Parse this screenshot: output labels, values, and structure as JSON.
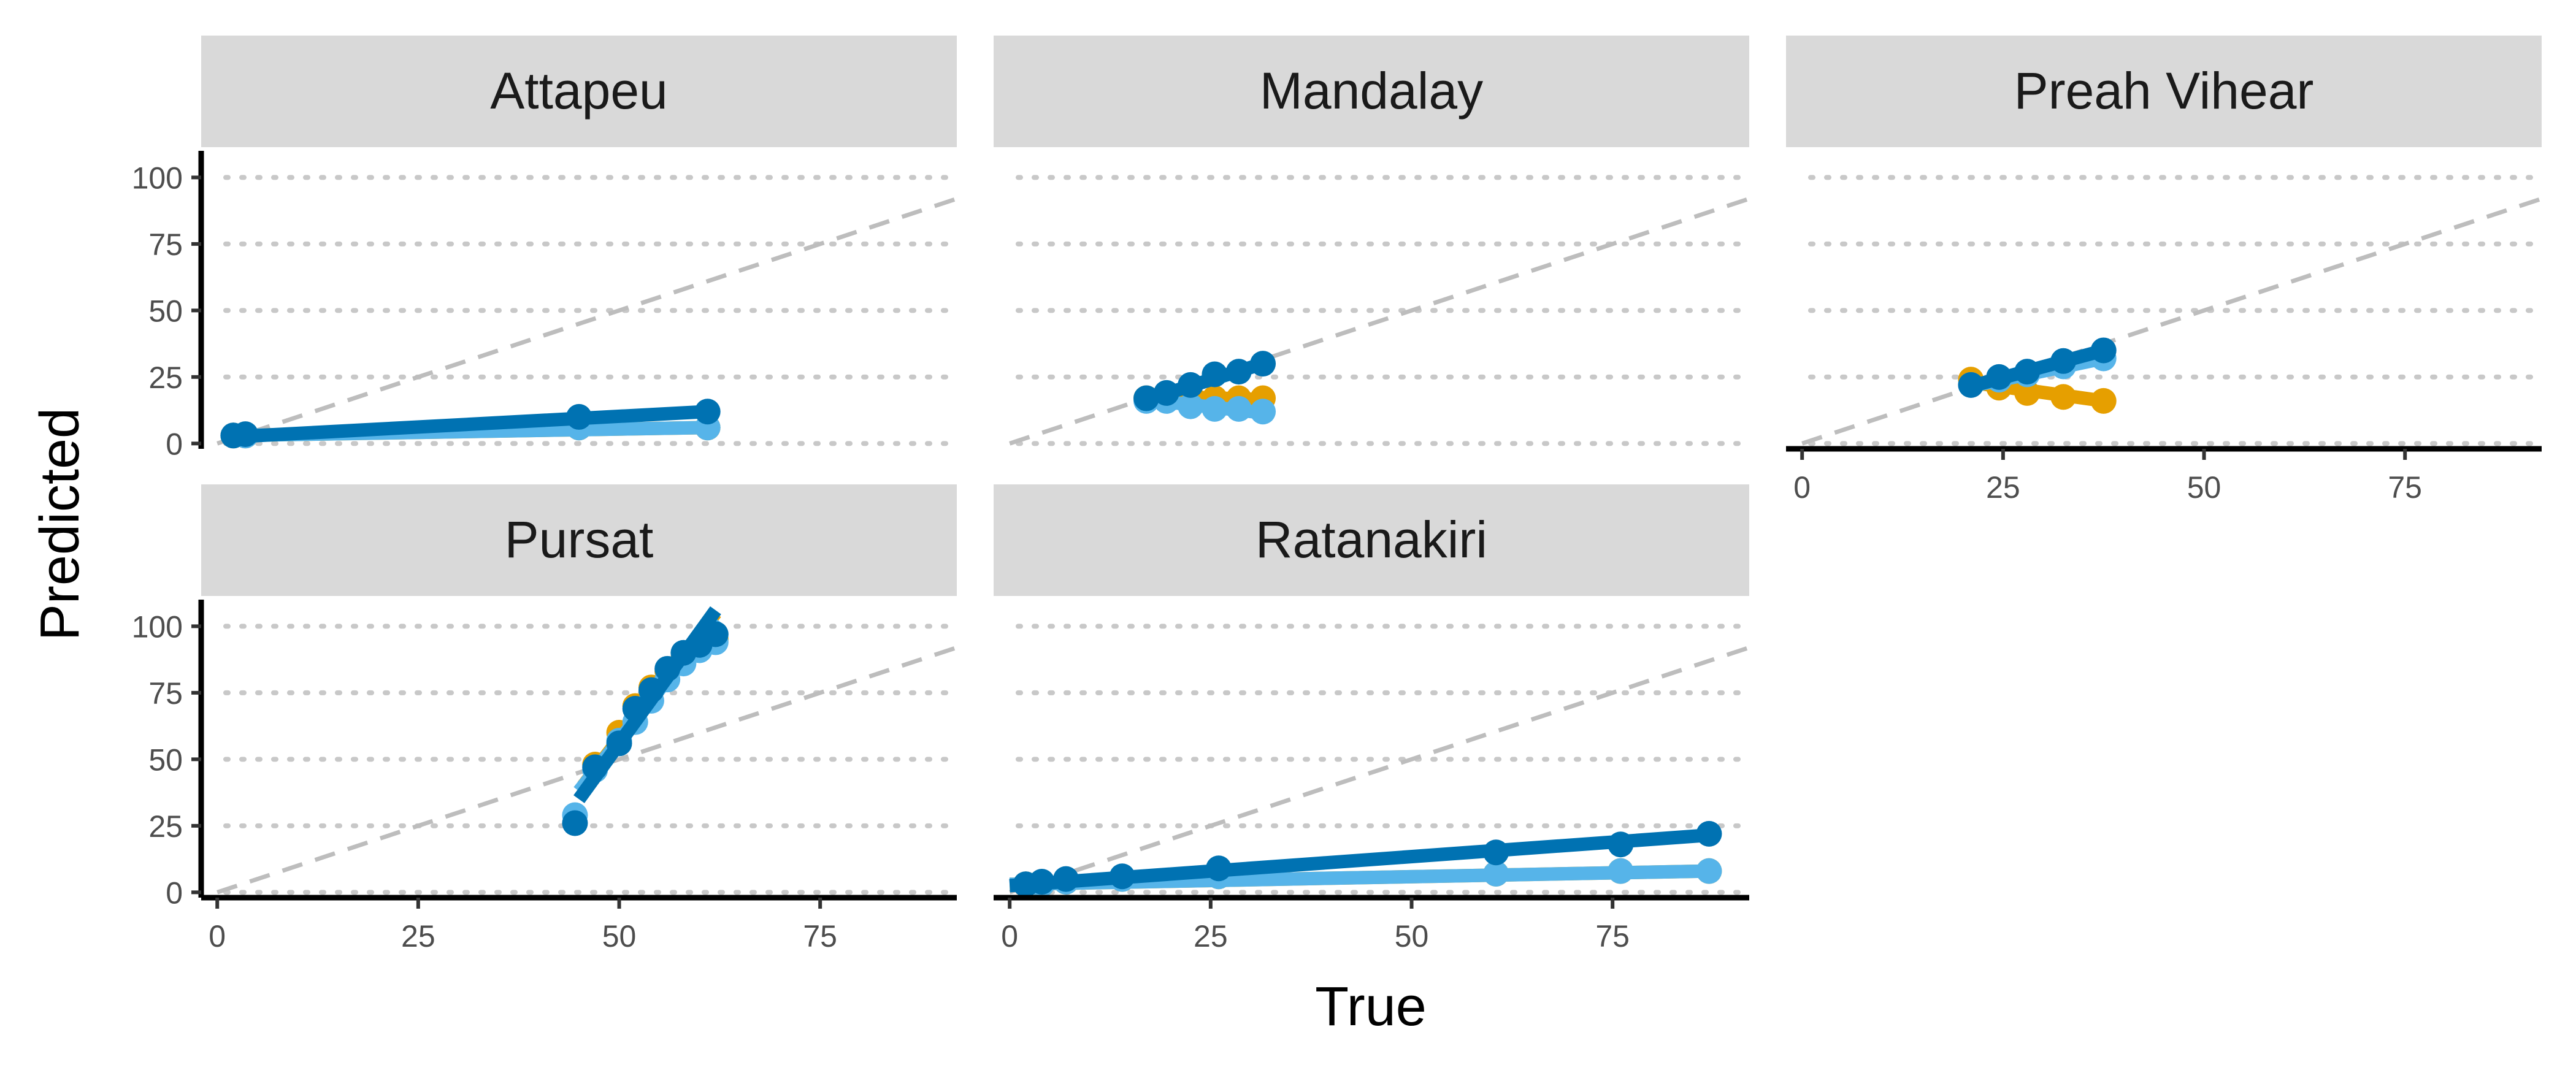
{
  "chart_data": {
    "type": "line",
    "xlabel": "True",
    "ylabel": "Predicted",
    "xlim": [
      -2,
      92
    ],
    "ylim": [
      -2,
      110
    ],
    "x_ticks": [
      0,
      25,
      50,
      75
    ],
    "x_tick_labels": [
      "0",
      "25",
      "50",
      "75"
    ],
    "y_ticks": [
      0,
      25,
      50,
      75,
      100
    ],
    "y_tick_labels": [
      "0",
      "25",
      "50",
      "75",
      "100"
    ],
    "grid": "horizontal dotted",
    "reference_line": "y = x (dashed)",
    "colors": {
      "series_a": "#0072B2",
      "series_b": "#56B4E9",
      "series_c": "#E69F00",
      "reference": "#bdbdbd",
      "grid": "#c8c8c8",
      "strip": "#d9d9d9"
    },
    "panels": [
      {
        "title": "Attapeu",
        "series": [
          {
            "color": "#E69F00",
            "points": [
              [
                2,
                3
              ],
              [
                3.5,
                3
              ],
              [
                45,
                6
              ],
              [
                61,
                6
              ]
            ],
            "fit": [
              [
                2,
                3
              ],
              [
                61,
                6
              ]
            ]
          },
          {
            "color": "#56B4E9",
            "points": [
              [
                2,
                3
              ],
              [
                3.5,
                3
              ],
              [
                45,
                6
              ],
              [
                61,
                6
              ]
            ],
            "fit": [
              [
                2,
                3
              ],
              [
                61,
                6
              ]
            ]
          },
          {
            "color": "#0072B2",
            "points": [
              [
                2,
                3
              ],
              [
                3.5,
                3.5
              ],
              [
                45,
                10
              ],
              [
                61,
                12
              ]
            ],
            "fit": [
              [
                2,
                2.5
              ],
              [
                61,
                12
              ]
            ]
          }
        ]
      },
      {
        "title": "Mandalay",
        "series": [
          {
            "color": "#E69F00",
            "points": [
              [
                17,
                17
              ],
              [
                19.5,
                17
              ],
              [
                22.5,
                18
              ],
              [
                25.5,
                17
              ],
              [
                28.5,
                17
              ],
              [
                31.5,
                17
              ]
            ],
            "fit": [
              [
                17,
                18
              ],
              [
                31.5,
                16.5
              ]
            ]
          },
          {
            "color": "#56B4E9",
            "points": [
              [
                17,
                16
              ],
              [
                19.5,
                16
              ],
              [
                22.5,
                14
              ],
              [
                25.5,
                13
              ],
              [
                28.5,
                13
              ],
              [
                31.5,
                12
              ]
            ],
            "fit": [
              [
                17,
                16.5
              ],
              [
                31.5,
                11.5
              ]
            ]
          },
          {
            "color": "#0072B2",
            "points": [
              [
                17,
                17
              ],
              [
                19.5,
                19
              ],
              [
                22.5,
                22
              ],
              [
                25.5,
                26
              ],
              [
                28.5,
                27
              ],
              [
                31.5,
                30
              ]
            ],
            "fit": [
              [
                17,
                16.5
              ],
              [
                31.5,
                30
              ]
            ]
          }
        ]
      },
      {
        "title": "Preah Vihear",
        "series": [
          {
            "color": "#E69F00",
            "points": [
              [
                21,
                24
              ],
              [
                24.5,
                21
              ],
              [
                28,
                19
              ],
              [
                32.5,
                17.5
              ],
              [
                37.5,
                16
              ]
            ],
            "fit": [
              [
                21,
                23
              ],
              [
                37.5,
                16
              ]
            ]
          },
          {
            "color": "#56B4E9",
            "points": [
              [
                21,
                22
              ],
              [
                24.5,
                24
              ],
              [
                28,
                26
              ],
              [
                32.5,
                29
              ],
              [
                37.5,
                32
              ]
            ],
            "fit": [
              [
                21,
                21.5
              ],
              [
                37.5,
                32
              ]
            ]
          },
          {
            "color": "#0072B2",
            "points": [
              [
                21,
                22
              ],
              [
                24.5,
                25
              ],
              [
                28,
                27
              ],
              [
                32.5,
                31
              ],
              [
                37.5,
                35
              ]
            ],
            "fit": [
              [
                21,
                21.5
              ],
              [
                37.5,
                35
              ]
            ]
          }
        ]
      },
      {
        "title": "Pursat",
        "series": [
          {
            "color": "#E69F00",
            "points": [
              [
                47,
                48
              ],
              [
                50,
                60
              ],
              [
                52,
                70
              ],
              [
                54,
                77
              ],
              [
                56,
                83
              ],
              [
                58,
                88
              ],
              [
                60,
                92
              ],
              [
                62,
                95
              ]
            ],
            "fit": [
              [
                45.5,
                40
              ],
              [
                62,
                105
              ]
            ]
          },
          {
            "color": "#56B4E9",
            "points": [
              [
                44.5,
                29
              ],
              [
                47,
                46
              ],
              [
                50,
                57
              ],
              [
                52,
                64
              ],
              [
                54,
                72
              ],
              [
                56,
                80
              ],
              [
                58,
                86
              ],
              [
                60,
                91
              ],
              [
                62,
                94
              ]
            ],
            "fit": [
              [
                45,
                38
              ],
              [
                62,
                103
              ]
            ]
          },
          {
            "color": "#0072B2",
            "points": [
              [
                44.5,
                26
              ],
              [
                47,
                47
              ],
              [
                50,
                56
              ],
              [
                52,
                69
              ],
              [
                54,
                76
              ],
              [
                56,
                84
              ],
              [
                58,
                90
              ],
              [
                60,
                93
              ],
              [
                62,
                97
              ]
            ],
            "fit": [
              [
                45,
                35
              ],
              [
                62,
                106
              ]
            ]
          }
        ]
      },
      {
        "title": "Ratanakiri",
        "series": [
          {
            "color": "#E69F00",
            "points": [
              [
                2,
                3
              ],
              [
                4,
                3
              ],
              [
                7,
                4
              ],
              [
                14,
                5
              ],
              [
                26,
                6
              ],
              [
                60.5,
                7
              ],
              [
                76,
                8
              ],
              [
                87,
                8
              ]
            ],
            "fit": [
              [
                0,
                3
              ],
              [
                87,
                8
              ]
            ]
          },
          {
            "color": "#56B4E9",
            "points": [
              [
                2,
                3
              ],
              [
                4,
                3
              ],
              [
                7,
                4
              ],
              [
                14,
                5
              ],
              [
                26,
                6
              ],
              [
                60.5,
                7
              ],
              [
                76,
                8
              ],
              [
                87,
                8
              ]
            ],
            "fit": [
              [
                0,
                3
              ],
              [
                87,
                8
              ]
            ]
          },
          {
            "color": "#0072B2",
            "points": [
              [
                2,
                3
              ],
              [
                4,
                4
              ],
              [
                7,
                5
              ],
              [
                14,
                6
              ],
              [
                26,
                9
              ],
              [
                60.5,
                15
              ],
              [
                76,
                18
              ],
              [
                87,
                22
              ]
            ],
            "fit": [
              [
                0,
                2.5
              ],
              [
                87,
                21.5
              ]
            ]
          }
        ]
      }
    ]
  }
}
